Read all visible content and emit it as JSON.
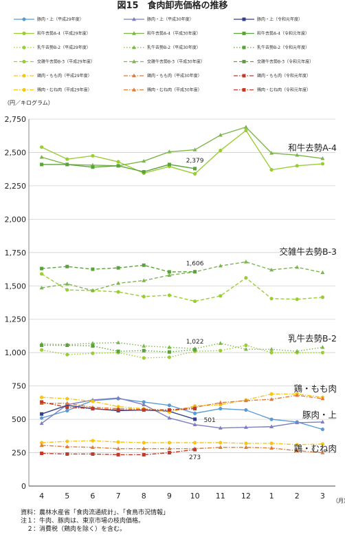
{
  "title": "図15　食肉卸売価格の推移",
  "chart_data": {
    "type": "line",
    "ylabel": "（円／キログラム）",
    "xunit": "（月）",
    "ylim": [
      0,
      2750
    ],
    "yticks": [
      0,
      250,
      500,
      750,
      1000,
      1250,
      1500,
      1750,
      2000,
      2250,
      2500,
      2750
    ],
    "ytick_labels": [
      "0",
      "250",
      "500",
      "750",
      "1,000",
      "1,250",
      "1,500",
      "1,750",
      "2,000",
      "2,250",
      "2,500",
      "2,750"
    ],
    "categories": [
      "4",
      "5",
      "6",
      "7",
      "8",
      "9",
      "10",
      "11",
      "12",
      "1",
      "2",
      "3"
    ],
    "grid": "horizontal",
    "series": [
      {
        "name": "豚肉・上（平成29年度）",
        "color": "#5b9bd5",
        "dash": "solid",
        "marker": "circle",
        "values": [
          510,
          565,
          640,
          655,
          630,
          605,
          545,
          580,
          570,
          500,
          480,
          425
        ]
      },
      {
        "name": "豚肉・上（平成30年度）",
        "color": "#7b7fc1",
        "dash": "solid",
        "marker": "triangle",
        "values": [
          470,
          610,
          645,
          660,
          610,
          510,
          460,
          435,
          440,
          445,
          475,
          480
        ]
      },
      {
        "name": "豚肉・上（令和元年度）",
        "color": "#2f3d8c",
        "dash": "solid",
        "marker": "square",
        "values": [
          540,
          605,
          580,
          565,
          570,
          560,
          501,
          null,
          null,
          null,
          null,
          null
        ]
      },
      {
        "name": "和牛去勢A-4（平成29年度）",
        "color": "#9acd32",
        "dash": "solid",
        "marker": "circle",
        "values": [
          2540,
          2450,
          2475,
          2430,
          2345,
          2395,
          2340,
          2515,
          2665,
          2370,
          2400,
          2415
        ]
      },
      {
        "name": "和牛去勢A-4（平成30年度）",
        "color": "#7ab648",
        "dash": "solid",
        "marker": "triangle",
        "values": [
          2465,
          2410,
          2405,
          2400,
          2435,
          2505,
          2520,
          2630,
          2690,
          2495,
          2480,
          2455
        ]
      },
      {
        "name": "和牛去勢A-4（令和元年度）",
        "color": "#5aa33a",
        "dash": "solid",
        "marker": "square",
        "values": [
          2410,
          2410,
          2390,
          2400,
          2355,
          2410,
          2379,
          null,
          null,
          null,
          null,
          null
        ]
      },
      {
        "name": "乳牛去勢B-2（平成29年度）",
        "color": "#9acd32",
        "dash": "dotted",
        "marker": "circle",
        "values": [
          1020,
          985,
          995,
          1000,
          960,
          965,
          1010,
          1015,
          1055,
          1000,
          1000,
          1000
        ]
      },
      {
        "name": "乳牛去勢B-2（平成30年度）",
        "color": "#7ab648",
        "dash": "dotted",
        "marker": "triangle",
        "values": [
          1065,
          1060,
          1070,
          1075,
          1050,
          1040,
          1030,
          1070,
          1025,
          1025,
          1010,
          1040
        ]
      },
      {
        "name": "乳牛去勢B-2（令和元年度）",
        "color": "#5aa33a",
        "dash": "dotted",
        "marker": "square",
        "values": [
          1055,
          1055,
          1050,
          1010,
          1015,
          1005,
          1022,
          null,
          null,
          null,
          null,
          null
        ]
      },
      {
        "name": "交雑牛去勢B-3（平成29年度）",
        "color": "#9acd32",
        "dash": "dashed",
        "marker": "circle",
        "values": [
          1590,
          1470,
          1465,
          1455,
          1420,
          1430,
          1385,
          1425,
          1560,
          1405,
          1400,
          1415
        ]
      },
      {
        "name": "交雑牛去勢B-3（平成30年度）",
        "color": "#7ab648",
        "dash": "dashed",
        "marker": "triangle",
        "values": [
          1485,
          1515,
          1465,
          1520,
          1540,
          1580,
          1605,
          1650,
          1680,
          1620,
          1640,
          1600
        ]
      },
      {
        "name": "交雑牛去勢B-3（令和元年度）",
        "color": "#5aa33a",
        "dash": "dashed",
        "marker": "square",
        "values": [
          1630,
          1645,
          1625,
          1635,
          1655,
          1605,
          1606,
          null,
          null,
          null,
          null,
          null
        ]
      },
      {
        "name": "鶏肉・もも肉（平成29年度）",
        "color": "#f5c518",
        "dash": "dashdot",
        "marker": "circle",
        "values": [
          665,
          655,
          635,
          595,
          580,
          555,
          600,
          610,
          645,
          690,
          690,
          665
        ]
      },
      {
        "name": "鶏肉・もも肉（平成30年度）",
        "color": "#e07b39",
        "dash": "dashdot",
        "marker": "triangle",
        "values": [
          620,
          620,
          590,
          580,
          575,
          570,
          590,
          625,
          640,
          650,
          680,
          655
        ]
      },
      {
        "name": "鶏肉・もも肉（令和元年度）",
        "color": "#c0392b",
        "dash": "dashdot",
        "marker": "square",
        "values": [
          630,
          590,
          580,
          570,
          570,
          570,
          580,
          null,
          null,
          null,
          null,
          null
        ]
      },
      {
        "name": "鶏肉・むね肉（平成29年度）",
        "color": "#f5c518",
        "dash": "dashdot",
        "marker": "circle",
        "values": [
          325,
          335,
          340,
          330,
          325,
          325,
          325,
          325,
          320,
          320,
          310,
          315
        ]
      },
      {
        "name": "鶏肉・むね肉（平成30年度）",
        "color": "#e07b39",
        "dash": "dashdot",
        "marker": "triangle",
        "values": [
          305,
          295,
          290,
          280,
          280,
          280,
          280,
          290,
          290,
          285,
          265,
          250
        ]
      },
      {
        "name": "鶏肉・むね肉（令和元年度）",
        "color": "#c0392b",
        "dash": "dashdot",
        "marker": "square",
        "values": [
          245,
          240,
          240,
          235,
          235,
          250,
          273,
          null,
          null,
          null,
          null,
          null
        ]
      }
    ],
    "data_labels": [
      {
        "series": "和牛去勢A-4（令和元年度）",
        "category": "10",
        "value": 2379,
        "text": "2,379"
      },
      {
        "series": "交雑牛去勢B-3（令和元年度）",
        "category": "10",
        "value": 1606,
        "text": "1,606"
      },
      {
        "series": "乳牛去勢B-2（令和元年度）",
        "category": "10",
        "value": 1022,
        "text": "1,022"
      },
      {
        "series": "豚肉・上（令和元年度）",
        "category": "10",
        "value": 501,
        "text": "501"
      },
      {
        "series": "鶏肉・むね肉（令和元年度）",
        "category": "10",
        "value": 273,
        "text": "273"
      }
    ],
    "group_labels": [
      "和牛去勢A-4",
      "交雑牛去勢B-3",
      "乳牛去勢B-2",
      "鶏・もも肉",
      "豚肉・上",
      "鶏・むね肉"
    ]
  },
  "footnotes": [
    "資料：農林水産省「食肉流通統計」、「食鳥市況情報」",
    "注１：牛肉、豚肉は、東京市場の枝肉価格。",
    "　２：消費税（鶏肉を除く）を含む。"
  ]
}
